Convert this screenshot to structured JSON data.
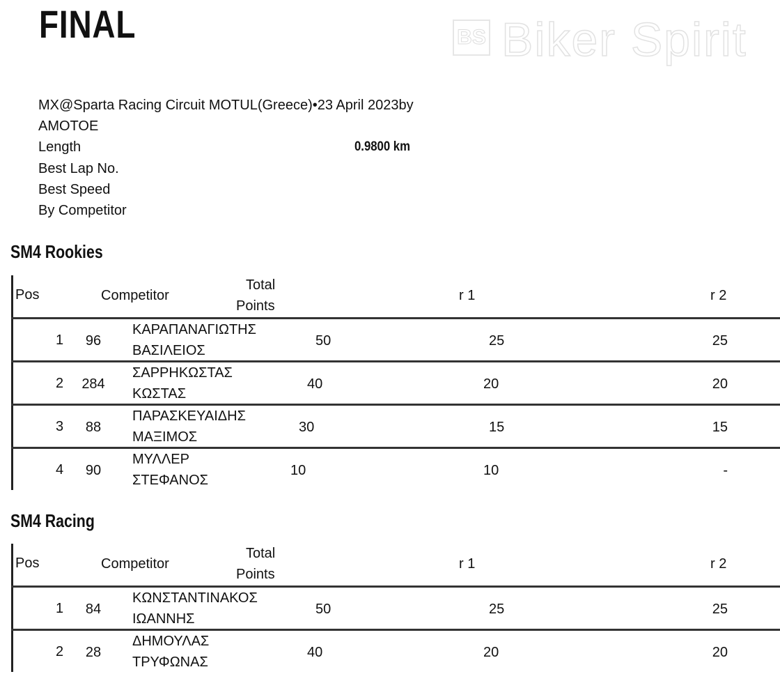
{
  "header": {
    "title": "FINAL",
    "event_line": "MX@Sparta Racing Circuit MOTUL(Greece)•23 April 2023by",
    "organizer": "AMOTOE",
    "length_label": "Length",
    "length_value": "0.9800 km",
    "best_lap_label": "Best Lap No.",
    "best_speed_label": "Best Speed",
    "by_competitor_label": "By Competitor"
  },
  "columns": {
    "pos": "Pos",
    "competitor": "Competitor",
    "total_1": "Total",
    "total_2": "Points",
    "r1": "r 1",
    "r2": "r 2"
  },
  "classes": [
    {
      "name": "SM4 Rookies",
      "rows": [
        {
          "pos": "1",
          "bib": "96",
          "surname": "ΚΑΡΑΠΑΝΑΓΙΩΤΗΣ",
          "firstname": "ΒΑΣΙΛΕΙΟΣ",
          "total": "50",
          "r1": "25",
          "r2": "25"
        },
        {
          "pos": "2",
          "bib": "284",
          "surname": "ΣΑΡΡΗΚΩΣΤΑΣ",
          "firstname": "ΚΩΣΤΑΣ",
          "total": "40",
          "r1": "20",
          "r2": "20"
        },
        {
          "pos": "3",
          "bib": "88",
          "surname": "ΠΑΡΑΣΚΕΥΑΙΔΗΣ",
          "firstname": "ΜΑΞΙΜΟΣ",
          "total": "30",
          "r1": "15",
          "r2": "15"
        },
        {
          "pos": "4",
          "bib": "90",
          "surname": "ΜΥΛΛΕΡ",
          "firstname": "ΣΤΕΦΑΝΟΣ",
          "total": "10",
          "r1": "10",
          "r2": "-"
        }
      ]
    },
    {
      "name": "SM4 Racing",
      "rows": [
        {
          "pos": "1",
          "bib": "84",
          "surname": "ΚΩΝΣΤΑΝΤΙΝΑΚΟΣ",
          "firstname": "ΙΩΑΝΝΗΣ",
          "total": "50",
          "r1": "25",
          "r2": "25"
        },
        {
          "pos": "2",
          "bib": "28",
          "surname": "ΔΗΜΟΥΛΑΣ",
          "firstname": "ΤΡΥΦΩΝΑΣ",
          "total": "40",
          "r1": "20",
          "r2": "20"
        }
      ]
    }
  ],
  "watermark": {
    "text": "Biker Spirit",
    "logo": "BS"
  }
}
